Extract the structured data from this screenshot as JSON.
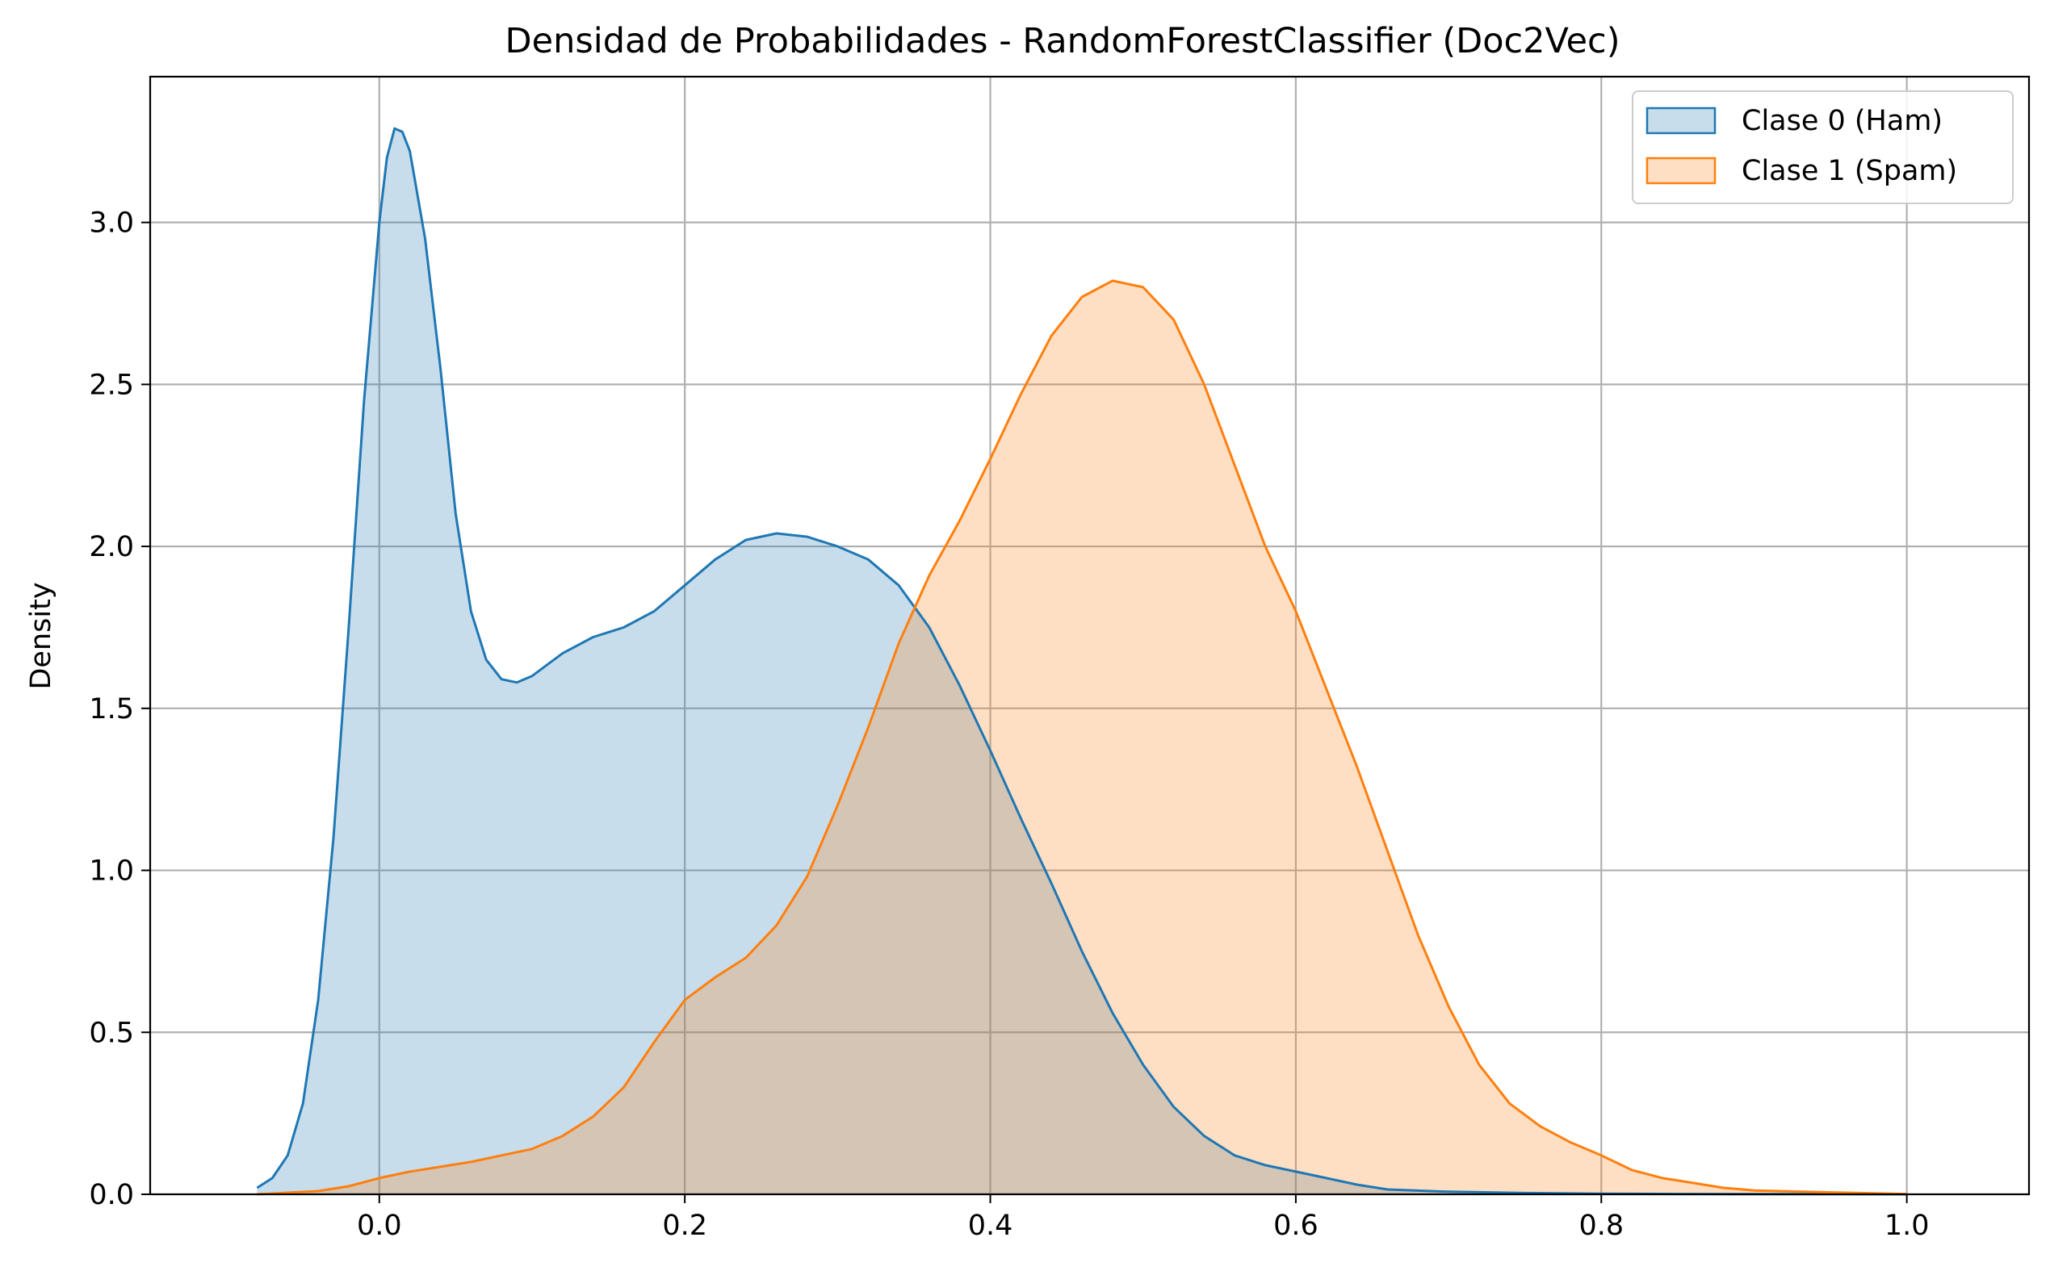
{
  "chart_data": {
    "type": "area",
    "title": "Densidad de Probabilidades - RandomForestClassifier (Doc2Vec)",
    "xlabel": "",
    "ylabel": "Density",
    "xlim": [
      -0.15,
      1.08
    ],
    "ylim": [
      0,
      3.45
    ],
    "xticks": [
      0.0,
      0.2,
      0.4,
      0.6,
      0.8,
      1.0
    ],
    "xtick_labels": [
      "0.0",
      "0.2",
      "0.4",
      "0.6",
      "0.8",
      "1.0"
    ],
    "yticks": [
      0.0,
      0.5,
      1.0,
      1.5,
      2.0,
      2.5,
      3.0
    ],
    "ytick_labels": [
      "0.0",
      "0.5",
      "1.0",
      "1.5",
      "2.0",
      "2.5",
      "3.0"
    ],
    "grid": true,
    "legend_position": "top-right",
    "series": [
      {
        "name": "Clase 0 (Ham)",
        "color": "#1f77b4",
        "fill": "#c6dbeb",
        "points": [
          [
            -0.08,
            0.02
          ],
          [
            -0.07,
            0.05
          ],
          [
            -0.06,
            0.12
          ],
          [
            -0.05,
            0.28
          ],
          [
            -0.04,
            0.6
          ],
          [
            -0.03,
            1.1
          ],
          [
            -0.02,
            1.75
          ],
          [
            -0.01,
            2.45
          ],
          [
            0.0,
            3.0
          ],
          [
            0.005,
            3.2
          ],
          [
            0.01,
            3.29
          ],
          [
            0.015,
            3.28
          ],
          [
            0.02,
            3.22
          ],
          [
            0.03,
            2.95
          ],
          [
            0.04,
            2.55
          ],
          [
            0.05,
            2.1
          ],
          [
            0.06,
            1.8
          ],
          [
            0.07,
            1.65
          ],
          [
            0.08,
            1.59
          ],
          [
            0.09,
            1.58
          ],
          [
            0.1,
            1.6
          ],
          [
            0.12,
            1.67
          ],
          [
            0.14,
            1.72
          ],
          [
            0.16,
            1.75
          ],
          [
            0.18,
            1.8
          ],
          [
            0.2,
            1.88
          ],
          [
            0.22,
            1.96
          ],
          [
            0.24,
            2.02
          ],
          [
            0.26,
            2.04
          ],
          [
            0.28,
            2.03
          ],
          [
            0.3,
            2.0
          ],
          [
            0.32,
            1.96
          ],
          [
            0.34,
            1.88
          ],
          [
            0.36,
            1.75
          ],
          [
            0.38,
            1.57
          ],
          [
            0.4,
            1.37
          ],
          [
            0.42,
            1.16
          ],
          [
            0.44,
            0.96
          ],
          [
            0.46,
            0.75
          ],
          [
            0.48,
            0.56
          ],
          [
            0.5,
            0.4
          ],
          [
            0.52,
            0.27
          ],
          [
            0.54,
            0.18
          ],
          [
            0.56,
            0.12
          ],
          [
            0.58,
            0.09
          ],
          [
            0.6,
            0.07
          ],
          [
            0.62,
            0.05
          ],
          [
            0.64,
            0.03
          ],
          [
            0.66,
            0.015
          ],
          [
            0.7,
            0.008
          ],
          [
            0.75,
            0.004
          ],
          [
            0.8,
            0.002
          ],
          [
            0.85,
            0.001
          ],
          [
            0.9,
            0.0005
          ],
          [
            1.0,
            0.0
          ]
        ]
      },
      {
        "name": "Clase 1 (Spam)",
        "color": "#ff7f0e",
        "fill": "#fdd9b5",
        "points": [
          [
            -0.08,
            0.0
          ],
          [
            -0.06,
            0.005
          ],
          [
            -0.04,
            0.01
          ],
          [
            -0.02,
            0.025
          ],
          [
            0.0,
            0.05
          ],
          [
            0.02,
            0.07
          ],
          [
            0.04,
            0.085
          ],
          [
            0.06,
            0.1
          ],
          [
            0.08,
            0.12
          ],
          [
            0.1,
            0.14
          ],
          [
            0.12,
            0.18
          ],
          [
            0.14,
            0.24
          ],
          [
            0.16,
            0.33
          ],
          [
            0.18,
            0.47
          ],
          [
            0.2,
            0.6
          ],
          [
            0.22,
            0.67
          ],
          [
            0.24,
            0.73
          ],
          [
            0.26,
            0.83
          ],
          [
            0.28,
            0.98
          ],
          [
            0.3,
            1.2
          ],
          [
            0.32,
            1.44
          ],
          [
            0.34,
            1.7
          ],
          [
            0.36,
            1.91
          ],
          [
            0.38,
            2.08
          ],
          [
            0.4,
            2.27
          ],
          [
            0.42,
            2.47
          ],
          [
            0.44,
            2.65
          ],
          [
            0.46,
            2.77
          ],
          [
            0.48,
            2.82
          ],
          [
            0.5,
            2.8
          ],
          [
            0.52,
            2.7
          ],
          [
            0.54,
            2.5
          ],
          [
            0.56,
            2.25
          ],
          [
            0.58,
            2.0
          ],
          [
            0.6,
            1.8
          ],
          [
            0.62,
            1.56
          ],
          [
            0.64,
            1.32
          ],
          [
            0.66,
            1.06
          ],
          [
            0.68,
            0.8
          ],
          [
            0.7,
            0.58
          ],
          [
            0.72,
            0.4
          ],
          [
            0.74,
            0.28
          ],
          [
            0.76,
            0.21
          ],
          [
            0.78,
            0.16
          ],
          [
            0.8,
            0.12
          ],
          [
            0.82,
            0.075
          ],
          [
            0.84,
            0.05
          ],
          [
            0.86,
            0.035
          ],
          [
            0.88,
            0.02
          ],
          [
            0.9,
            0.012
          ],
          [
            0.95,
            0.006
          ],
          [
            1.0,
            0.001
          ]
        ]
      }
    ]
  }
}
